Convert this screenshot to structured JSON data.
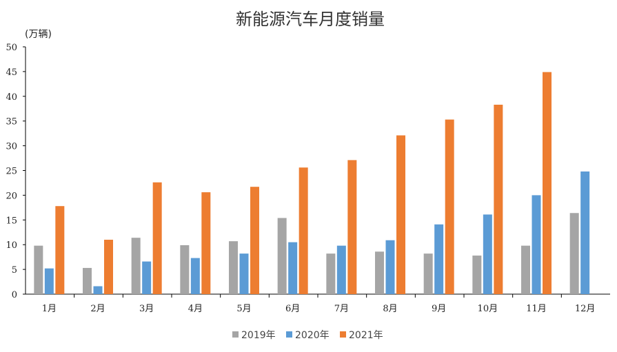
{
  "chart_data": {
    "type": "bar",
    "title": "新能源汽车月度销量",
    "unit_label": "(万辆)",
    "categories": [
      "1月",
      "2月",
      "3月",
      "4月",
      "5月",
      "6月",
      "7月",
      "8月",
      "9月",
      "10月",
      "11月",
      "12月"
    ],
    "series": [
      {
        "name": "2019年",
        "color": "#A5A5A5",
        "values": [
          9.8,
          5.3,
          11.4,
          9.9,
          10.7,
          15.4,
          8.2,
          8.6,
          8.2,
          7.8,
          9.8,
          16.4
        ]
      },
      {
        "name": "2020年",
        "color": "#5B9BD5",
        "values": [
          5.2,
          1.6,
          6.6,
          7.3,
          8.2,
          10.5,
          9.8,
          10.9,
          14.1,
          16.1,
          20.0,
          24.8
        ]
      },
      {
        "name": "2021年",
        "color": "#ED7D31",
        "values": [
          17.8,
          11.0,
          22.6,
          20.6,
          21.7,
          25.6,
          27.1,
          32.1,
          35.3,
          38.3,
          44.9,
          null
        ]
      }
    ],
    "ylim": [
      0,
      50
    ],
    "yticks": [
      0,
      5,
      10,
      15,
      20,
      25,
      30,
      35,
      40,
      45,
      50
    ],
    "grid": false,
    "legend_position": "bottom"
  }
}
